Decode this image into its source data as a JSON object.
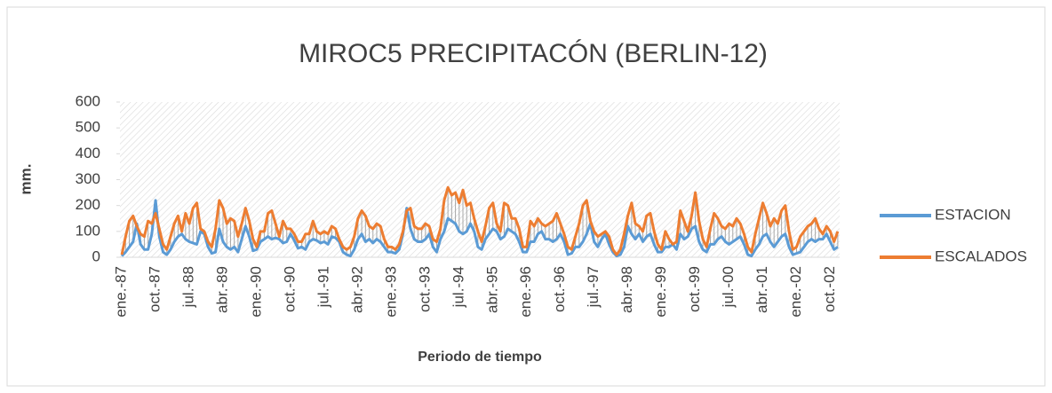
{
  "chart_data": {
    "type": "line",
    "title": "MIROC5 PRECIPITACÓN (BERLIN-12)",
    "x_label": "Periodo de tiempo",
    "y_label": "mm.",
    "categories": [
      "ene.-87",
      null,
      null,
      null,
      null,
      null,
      null,
      null,
      null,
      "oct.-87",
      null,
      null,
      null,
      null,
      null,
      null,
      null,
      null,
      "jul.-88",
      null,
      null,
      null,
      null,
      null,
      null,
      null,
      null,
      "abr.-89",
      null,
      null,
      null,
      null,
      null,
      null,
      null,
      null,
      "ene.-90",
      null,
      null,
      null,
      null,
      null,
      null,
      null,
      null,
      "oct.-90",
      null,
      null,
      null,
      null,
      null,
      null,
      null,
      null,
      "jul.-91",
      null,
      null,
      null,
      null,
      null,
      null,
      null,
      null,
      "abr.-92",
      null,
      null,
      null,
      null,
      null,
      null,
      null,
      null,
      "ene.-93",
      null,
      null,
      null,
      null,
      null,
      null,
      null,
      null,
      "oct.-93",
      null,
      null,
      null,
      null,
      null,
      null,
      null,
      null,
      "jul.-94",
      null,
      null,
      null,
      null,
      null,
      null,
      null,
      null,
      "abr.-95",
      null,
      null,
      null,
      null,
      null,
      null,
      null,
      null,
      "ene.-96",
      null,
      null,
      null,
      null,
      null,
      null,
      null,
      null,
      "oct.-96",
      null,
      null,
      null,
      null,
      null,
      null,
      null,
      null,
      "jul.-97",
      null,
      null,
      null,
      null,
      null,
      null,
      null,
      null,
      "abr.-98",
      null,
      null,
      null,
      null,
      null,
      null,
      null,
      null,
      "ene.-99",
      null,
      null,
      null,
      null,
      null,
      null,
      null,
      null,
      "oct.-99",
      null,
      null,
      null,
      null,
      null,
      null,
      null,
      null,
      "jul.-00",
      null,
      null,
      null,
      null,
      null,
      null,
      null,
      null,
      "abr.-01",
      null,
      null,
      null,
      null,
      null,
      null,
      null,
      null,
      "ene.-02",
      null,
      null,
      null,
      null,
      null,
      null,
      null,
      null,
      "oct.-02",
      null,
      null
    ],
    "series": [
      {
        "name": "ESTACION",
        "color": "#5b9bd5",
        "values": [
          5,
          20,
          40,
          60,
          130,
          50,
          30,
          30,
          90,
          220,
          80,
          20,
          10,
          30,
          60,
          80,
          90,
          70,
          60,
          55,
          50,
          100,
          90,
          40,
          15,
          20,
          110,
          60,
          40,
          30,
          40,
          20,
          70,
          120,
          80,
          25,
          30,
          60,
          70,
          80,
          70,
          75,
          70,
          55,
          60,
          90,
          65,
          35,
          40,
          30,
          60,
          70,
          65,
          55,
          60,
          50,
          80,
          75,
          60,
          20,
          10,
          5,
          30,
          70,
          90,
          60,
          70,
          55,
          70,
          60,
          40,
          20,
          20,
          15,
          30,
          90,
          190,
          110,
          70,
          60,
          60,
          70,
          90,
          40,
          20,
          70,
          100,
          150,
          140,
          130,
          100,
          90,
          100,
          130,
          100,
          40,
          30,
          70,
          90,
          110,
          100,
          70,
          80,
          110,
          100,
          90,
          60,
          20,
          20,
          60,
          60,
          90,
          100,
          70,
          70,
          60,
          70,
          90,
          60,
          10,
          15,
          40,
          40,
          60,
          90,
          130,
          60,
          40,
          70,
          90,
          50,
          20,
          5,
          10,
          40,
          120,
          90,
          70,
          90,
          60,
          80,
          90,
          50,
          20,
          20,
          40,
          40,
          50,
          30,
          90,
          70,
          80,
          110,
          120,
          60,
          30,
          20,
          50,
          50,
          70,
          80,
          60,
          50,
          60,
          70,
          80,
          50,
          10,
          5,
          30,
          50,
          80,
          90,
          60,
          40,
          60,
          80,
          90,
          40,
          10,
          15,
          20,
          40,
          60,
          70,
          60,
          70,
          70,
          90,
          60,
          30,
          40
        ]
      },
      {
        "name": "ESCALADOS",
        "color": "#ed7d31",
        "values": [
          10,
          80,
          140,
          160,
          120,
          90,
          80,
          140,
          130,
          170,
          110,
          50,
          30,
          80,
          130,
          160,
          100,
          170,
          130,
          190,
          210,
          110,
          100,
          60,
          40,
          110,
          220,
          190,
          130,
          150,
          140,
          80,
          130,
          190,
          140,
          70,
          40,
          100,
          100,
          170,
          180,
          130,
          80,
          140,
          110,
          110,
          90,
          60,
          60,
          90,
          90,
          140,
          100,
          90,
          100,
          90,
          120,
          110,
          70,
          40,
          30,
          40,
          80,
          150,
          180,
          160,
          120,
          110,
          130,
          120,
          70,
          40,
          40,
          30,
          50,
          100,
          180,
          190,
          120,
          110,
          110,
          130,
          120,
          70,
          60,
          110,
          220,
          270,
          240,
          250,
          210,
          260,
          200,
          210,
          150,
          100,
          60,
          120,
          190,
          210,
          130,
          100,
          210,
          200,
          150,
          150,
          110,
          40,
          40,
          140,
          120,
          150,
          130,
          120,
          130,
          140,
          170,
          130,
          90,
          40,
          30,
          80,
          130,
          200,
          220,
          140,
          100,
          80,
          90,
          100,
          80,
          30,
          10,
          30,
          90,
          160,
          210,
          130,
          120,
          100,
          160,
          170,
          100,
          50,
          30,
          100,
          70,
          50,
          60,
          180,
          140,
          100,
          160,
          250,
          140,
          70,
          40,
          110,
          170,
          150,
          120,
          110,
          130,
          120,
          150,
          130,
          90,
          40,
          20,
          90,
          150,
          210,
          170,
          120,
          150,
          130,
          180,
          200,
          100,
          30,
          40,
          80,
          100,
          120,
          130,
          150,
          110,
          90,
          120,
          100,
          60,
          100
        ]
      }
    ],
    "ylim": [
      0,
      600
    ],
    "yticks": [
      0,
      100,
      200,
      300,
      400,
      500,
      600
    ],
    "legend": "right"
  }
}
